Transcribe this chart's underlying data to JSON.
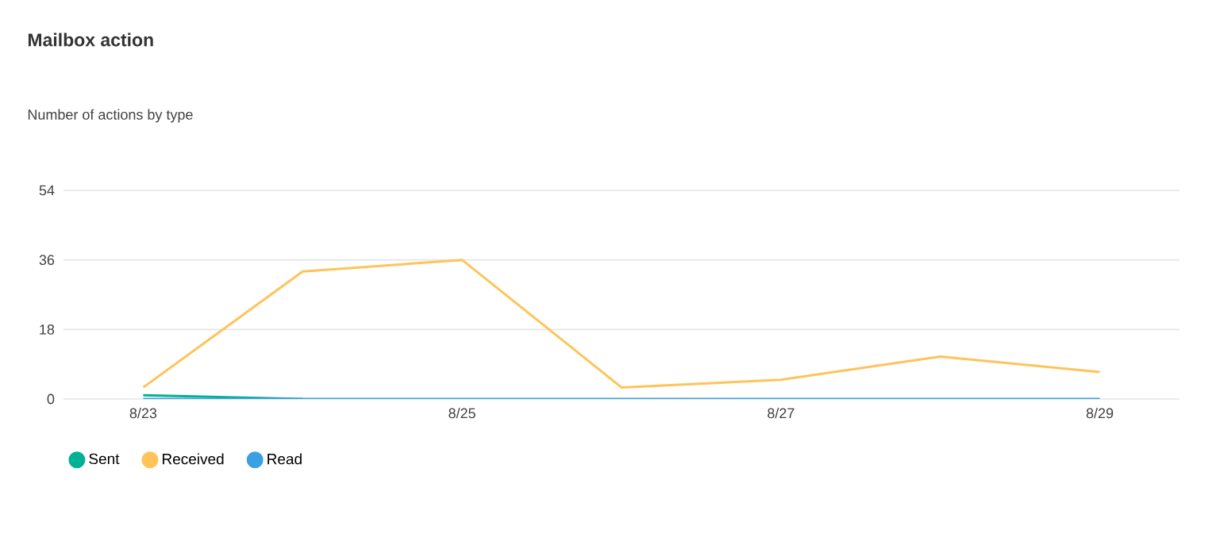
{
  "chart_data": {
    "type": "line",
    "title": "Mailbox action",
    "subtitle": "Number of actions by type",
    "categories": [
      "8/23",
      null,
      "8/25",
      null,
      "8/27",
      null,
      "8/29"
    ],
    "series": [
      {
        "name": "Sent",
        "color": "#00b294",
        "values": [
          1,
          0,
          null,
          null,
          null,
          null,
          null
        ]
      },
      {
        "name": "Received",
        "color": "#ffc35a",
        "values": [
          3,
          33,
          36,
          3,
          5,
          11,
          7
        ]
      },
      {
        "name": "Read",
        "color": "#3aa0e4",
        "values": [
          0,
          0,
          0,
          0,
          0,
          0,
          0
        ]
      }
    ],
    "ylim": [
      0,
      54
    ],
    "yticks": [
      0,
      18,
      36,
      54
    ],
    "grid": "y",
    "legend": "bottom left",
    "marker": "none"
  }
}
